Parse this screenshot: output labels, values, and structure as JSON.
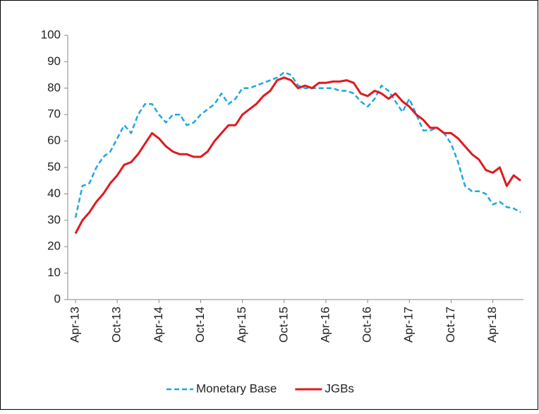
{
  "chart_data": {
    "type": "line",
    "categories": [
      "Apr-13",
      null,
      null,
      null,
      null,
      null,
      "Oct-13",
      null,
      null,
      null,
      null,
      null,
      "Apr-14",
      null,
      null,
      null,
      null,
      null,
      "Oct-14",
      null,
      null,
      null,
      null,
      null,
      "Apr-15",
      null,
      null,
      null,
      null,
      null,
      "Oct-15",
      null,
      null,
      null,
      null,
      null,
      "Apr-16",
      null,
      null,
      null,
      null,
      null,
      "Oct-16",
      null,
      null,
      null,
      null,
      null,
      "Apr-17",
      null,
      null,
      null,
      null,
      null,
      "Oct-17",
      null,
      null,
      null,
      null,
      null,
      "Apr-18",
      null,
      null,
      null,
      null
    ],
    "series": [
      {
        "name": "Monetary Base",
        "color": "#1ea7e1",
        "dashed": true,
        "values": [
          31,
          43,
          44,
          50,
          54,
          56,
          61,
          66,
          63,
          70,
          74,
          74,
          70,
          67,
          70,
          70,
          66,
          67,
          70,
          72,
          74,
          78,
          74,
          76,
          80,
          80,
          81,
          82,
          83,
          84,
          86,
          85,
          81,
          80,
          80,
          80,
          80,
          80,
          79,
          79,
          78,
          75,
          73,
          76,
          81,
          79,
          75,
          71,
          76,
          70,
          64,
          64,
          65,
          63,
          59,
          52,
          43,
          41,
          41,
          40,
          36,
          37,
          35,
          34.5,
          33
        ]
      },
      {
        "name": "JGBs",
        "color": "#e0191e",
        "dashed": false,
        "values": [
          25,
          30,
          33,
          37,
          40,
          44,
          47,
          51,
          52,
          55,
          59,
          63,
          61,
          58,
          56,
          55,
          55,
          54,
          54,
          56,
          60,
          63,
          66,
          66,
          70,
          72,
          74,
          77,
          79,
          83,
          84,
          83,
          80,
          81,
          80,
          82,
          82,
          82.5,
          82.5,
          83,
          82,
          78,
          77,
          79,
          78,
          76,
          78,
          75,
          73,
          70,
          68,
          65,
          65,
          63,
          63,
          61,
          58,
          55,
          53,
          49,
          48,
          50,
          43,
          47,
          45
        ]
      }
    ],
    "ylim": [
      0,
      100
    ],
    "yticks": [
      0,
      10,
      20,
      30,
      40,
      50,
      60,
      70,
      80,
      90,
      100
    ],
    "grid": false,
    "legend": "bottom"
  }
}
